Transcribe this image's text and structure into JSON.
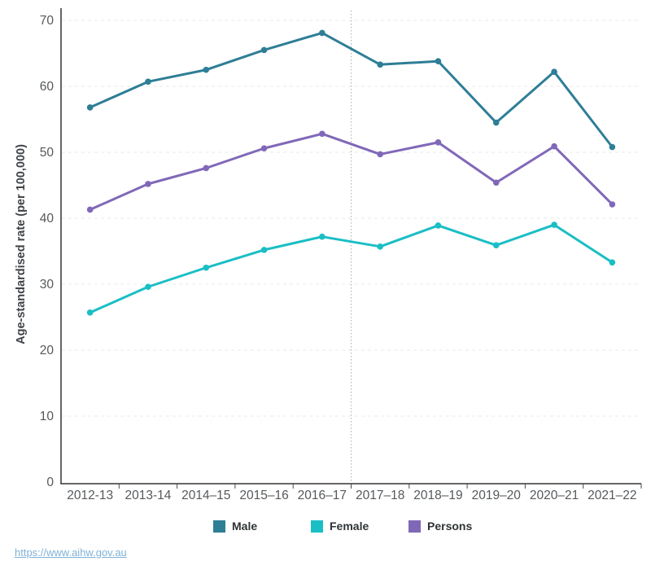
{
  "chart_data": {
    "type": "line",
    "title": "",
    "xlabel": "",
    "ylabel": "Age-standardised rate (per 100,000)",
    "ylim": [
      0,
      70
    ],
    "yticks": [
      0,
      10,
      20,
      30,
      40,
      50,
      60,
      70
    ],
    "grid": "horizontal-dashed",
    "legend_position": "bottom",
    "categories": [
      "2012-13",
      "2013-14",
      "2014–15",
      "2015–16",
      "2016–17",
      "2017–18",
      "2018–19",
      "2019–20",
      "2020–21",
      "2021–22"
    ],
    "series": [
      {
        "name": "Male",
        "color": "#2e7e96",
        "values": [
          56.8,
          60.7,
          62.5,
          65.5,
          68.1,
          63.3,
          63.8,
          54.5,
          62.2,
          50.8
        ]
      },
      {
        "name": "Female",
        "color": "#1abec5",
        "values": [
          25.7,
          29.6,
          32.5,
          35.2,
          37.2,
          35.7,
          38.9,
          35.9,
          39.0,
          33.3
        ]
      },
      {
        "name": "Persons",
        "color": "#8068b8",
        "values": [
          41.3,
          45.2,
          47.6,
          50.6,
          52.8,
          49.7,
          51.5,
          45.4,
          50.9,
          42.1
        ]
      }
    ],
    "divider": {
      "after_category": "2016–17",
      "style": "dotted"
    }
  },
  "footer": {
    "link_text": "https://www.aihw.gov.au"
  }
}
